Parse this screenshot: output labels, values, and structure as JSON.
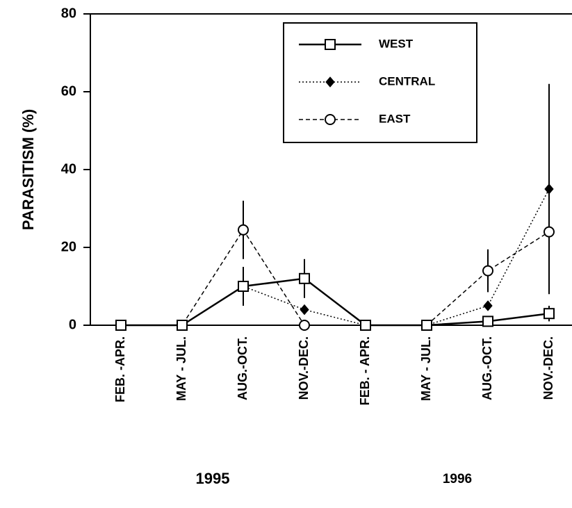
{
  "chart_data": {
    "type": "line",
    "ylabel": "PARASITISM    (%)",
    "categories": [
      "FEB. -APR.",
      "MAY - JUL.",
      "AUG.-OCT.",
      "NOV.-DEC.",
      "FEB. - APR.",
      "MAY - JUL.",
      "AUG.-OCT.",
      "NOV.-DEC."
    ],
    "year_labels": [
      "1995",
      "1996"
    ],
    "series": [
      {
        "name": "WEST",
        "color": "#000000",
        "marker": "square",
        "dash": "solid",
        "values": [
          0,
          0,
          10,
          12,
          0,
          0,
          1,
          3
        ],
        "errors": [
          null,
          null,
          null,
          5,
          null,
          null,
          null,
          2
        ]
      },
      {
        "name": "CENTRAL",
        "color": "#000000",
        "marker": "diamond",
        "dash": "dotted",
        "values": [
          0,
          0,
          10,
          4,
          0,
          0,
          5,
          35
        ],
        "errors": [
          null,
          null,
          5,
          null,
          null,
          null,
          null,
          27
        ]
      },
      {
        "name": "EAST",
        "color": "#000000",
        "marker": "circle",
        "dash": "dashed",
        "values": [
          0,
          0,
          24.5,
          0,
          0,
          0,
          14,
          24
        ],
        "errors": [
          null,
          null,
          7.5,
          null,
          null,
          null,
          5.5,
          null
        ]
      }
    ],
    "ylim": [
      0,
      80
    ],
    "yticks": [
      0,
      20,
      40,
      60,
      80
    ],
    "legend": "upper right"
  }
}
